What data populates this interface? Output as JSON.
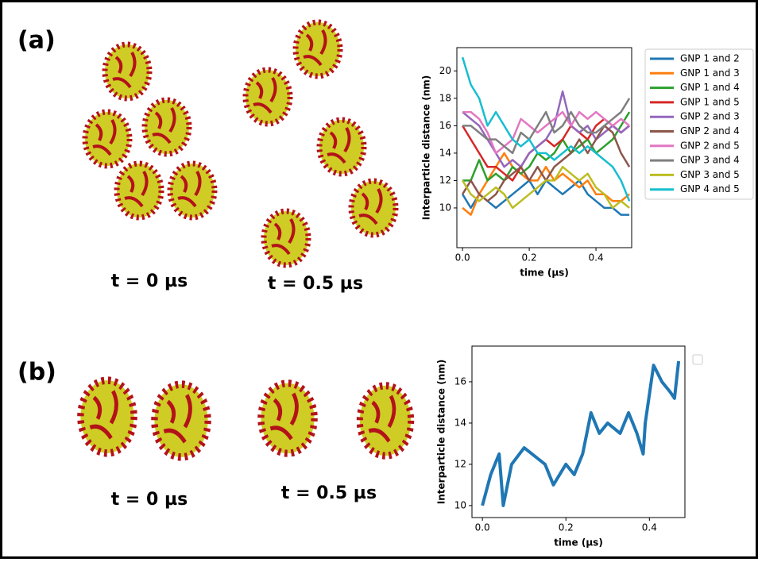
{
  "panel_labels": [
    "(a)",
    "(b)"
  ],
  "captions": [
    "t = 0 µs",
    "t = 0.5 µs",
    "t = 0 µs",
    "t = 0.5 µs"
  ],
  "chart_data": [
    {
      "type": "line",
      "xlabel": "time (μs)",
      "ylabel": "Interparticle distance (nm)",
      "xlim": [
        -0.017,
        0.507
      ],
      "ylim": [
        7.1,
        21.7
      ],
      "xticks": [
        {
          "value": 0,
          "label": "0.0"
        },
        {
          "value": 0.2,
          "label": "0.2"
        },
        {
          "value": 0.4,
          "label": "0.4"
        }
      ],
      "yticks": [
        10,
        12,
        14,
        16,
        18,
        20
      ],
      "legend": "outside-right",
      "x": [
        0,
        0.025,
        0.05,
        0.075,
        0.1,
        0.125,
        0.15,
        0.175,
        0.2,
        0.225,
        0.25,
        0.275,
        0.3,
        0.325,
        0.35,
        0.375,
        0.4,
        0.425,
        0.45,
        0.475,
        0.5
      ],
      "series": [
        {
          "name": "GNP 1 and 2",
          "color": "#1f77b4",
          "values": [
            11,
            10,
            11,
            10.5,
            10,
            10.5,
            11,
            11.5,
            12,
            11,
            12,
            11.5,
            11,
            11.5,
            12,
            11,
            10.5,
            10,
            10,
            9.5,
            9.5
          ]
        },
        {
          "name": "GNP 1 and 3",
          "color": "#ff7f0e",
          "values": [
            10,
            9.5,
            11,
            12,
            13,
            14,
            13,
            12.5,
            12,
            12,
            13,
            12,
            12.5,
            12,
            11.5,
            12,
            11,
            11,
            10.5,
            10.5,
            11
          ]
        },
        {
          "name": "GNP 1 and 4",
          "color": "#2ca02c",
          "values": [
            12,
            12,
            13.5,
            12,
            12.5,
            12,
            13,
            12.5,
            13,
            14,
            13.5,
            14,
            15,
            14,
            14.5,
            15,
            14,
            14.5,
            15,
            16,
            17
          ]
        },
        {
          "name": "GNP 1 and 5",
          "color": "#d62728",
          "values": [
            16,
            15,
            14,
            13,
            13,
            12.5,
            12,
            13,
            14,
            14.5,
            15,
            14.5,
            15,
            16,
            15.5,
            15,
            16,
            16.5,
            16,
            15.5,
            16
          ]
        },
        {
          "name": "GNP 2 and 3",
          "color": "#9467bd",
          "values": [
            17,
            16.5,
            16,
            15,
            14,
            13,
            13.5,
            13,
            14,
            14.5,
            15,
            16,
            18.5,
            16,
            15.5,
            16,
            15,
            15.5,
            16,
            15.5,
            16
          ]
        },
        {
          "name": "GNP 2 and 4",
          "color": "#8c564b",
          "values": [
            11,
            12,
            11,
            10.5,
            11,
            12,
            12.5,
            13,
            12,
            13,
            12,
            13,
            13.5,
            14,
            15,
            14,
            15,
            16,
            15.5,
            14,
            13
          ]
        },
        {
          "name": "GNP 2 and 5",
          "color": "#e377c2",
          "values": [
            17,
            17,
            16.5,
            15.5,
            14,
            14.5,
            15,
            16.5,
            16,
            15.5,
            16,
            16.5,
            17,
            16,
            17,
            16.5,
            17,
            16.5,
            16,
            16.5,
            16
          ]
        },
        {
          "name": "GNP 3 and 4",
          "color": "#7f7f7f",
          "values": [
            16,
            16,
            15.5,
            15,
            15,
            14.5,
            14,
            15.5,
            15,
            16,
            17,
            15.5,
            16,
            17,
            16,
            15.5,
            15.5,
            16,
            16.5,
            17,
            18
          ]
        },
        {
          "name": "GNP 3 and 5",
          "color": "#bcbd22",
          "values": [
            12,
            11,
            10.5,
            11,
            11.5,
            11,
            10,
            10.5,
            11,
            11.5,
            12,
            12,
            13,
            12.5,
            12,
            12.5,
            11.5,
            11,
            10,
            10.5,
            10
          ]
        },
        {
          "name": "GNP 4 and 5",
          "color": "#17becf",
          "values": [
            21,
            19,
            18,
            16,
            17,
            16,
            15,
            14.5,
            15,
            14,
            14,
            13.5,
            14,
            14.5,
            14,
            14.5,
            14,
            13.5,
            13,
            12,
            10.5
          ]
        }
      ]
    },
    {
      "type": "line",
      "xlabel": "time (μs)",
      "ylabel": "Interparticle distance (nm)",
      "xlim": [
        -0.025,
        0.485
      ],
      "ylim": [
        9.42,
        17.73
      ],
      "xticks": [
        {
          "value": 0,
          "label": "0.0"
        },
        {
          "value": 0.2,
          "label": "0.2"
        },
        {
          "value": 0.4,
          "label": "0.4"
        }
      ],
      "yticks": [
        10,
        12,
        14,
        16
      ],
      "x": [
        0,
        0.02,
        0.04,
        0.05,
        0.07,
        0.1,
        0.15,
        0.17,
        0.2,
        0.22,
        0.24,
        0.26,
        0.28,
        0.3,
        0.33,
        0.35,
        0.37,
        0.385,
        0.39,
        0.41,
        0.43,
        0.45,
        0.46,
        0.47
      ],
      "series": [
        {
          "color": "#1f77b4",
          "values": [
            10,
            11.5,
            12.5,
            10,
            12,
            12.8,
            12,
            11,
            12,
            11.5,
            12.5,
            14.5,
            13.5,
            14,
            13.5,
            14.5,
            13.5,
            12.5,
            14,
            16.8,
            16,
            15.5,
            15.2,
            17
          ]
        }
      ]
    }
  ]
}
